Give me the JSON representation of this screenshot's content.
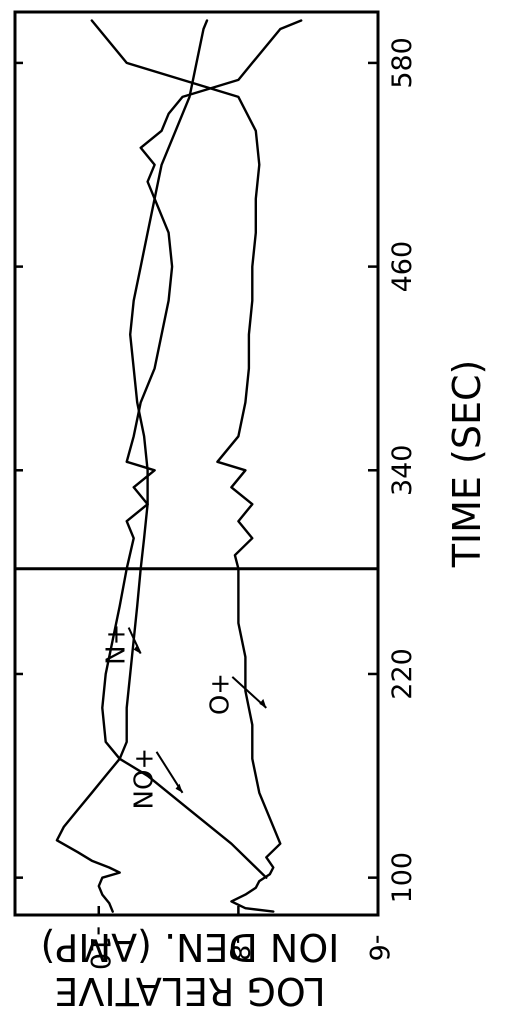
{
  "chart_data": {
    "type": "line",
    "xlabel": "TIME (SEC)",
    "ylabel": "LOG RELATIVE ION DEN. (AMP)",
    "x_ticks": [
      100,
      220,
      340,
      460,
      580
    ],
    "y_ticks": [
      -10,
      -8,
      -6
    ],
    "y_tick_labels": [
      "-10",
      "-8",
      "-6"
    ],
    "xlim": [
      78,
      610
    ],
    "ylim": [
      -6,
      -11.2
    ],
    "vertical_marker_x": 282,
    "annotations": [
      {
        "text": "N+",
        "target_x": 232,
        "target_y": -9.4
      },
      {
        "text": "NO+",
        "target_x": 150,
        "target_y": -8.8
      },
      {
        "text": "O+",
        "target_x": 200,
        "target_y": -7.6
      }
    ],
    "series": [
      {
        "name": "N+",
        "x": [
          80,
          85,
          90,
          95,
          100,
          103,
          106,
          110,
          115,
          122,
          130,
          140,
          150,
          160,
          170,
          180,
          200,
          220,
          240,
          260,
          282,
          300,
          320,
          340,
          360,
          380,
          400,
          420,
          440,
          460,
          480,
          500,
          520,
          540,
          560,
          580,
          600,
          605
        ],
        "y": [
          -9.8,
          -9.85,
          -9.95,
          -10.0,
          -9.95,
          -9.7,
          -9.85,
          -10.1,
          -10.3,
          -10.6,
          -10.5,
          -10.3,
          -10.1,
          -9.9,
          -9.7,
          -9.6,
          -9.6,
          -9.55,
          -9.5,
          -9.45,
          -9.4,
          -9.35,
          -9.3,
          -9.3,
          -9.35,
          -9.45,
          -9.5,
          -9.55,
          -9.5,
          -9.4,
          -9.3,
          -9.2,
          -9.1,
          -8.9,
          -8.7,
          -8.6,
          -8.5,
          -8.45
        ]
      },
      {
        "name": "NO+",
        "x": [
          100,
          120,
          140,
          160,
          170,
          180,
          200,
          220,
          240,
          260,
          282,
          300,
          310,
          320,
          330,
          340,
          345,
          360,
          380,
          400,
          420,
          440,
          460,
          480,
          500,
          510,
          520,
          530,
          540,
          550,
          560,
          570,
          580,
          600,
          605
        ],
        "y": [
          -7.6,
          -8.1,
          -8.7,
          -9.3,
          -9.7,
          -9.9,
          -9.95,
          -9.9,
          -9.8,
          -9.7,
          -9.6,
          -9.5,
          -9.6,
          -9.3,
          -9.5,
          -9.2,
          -9.6,
          -9.5,
          -9.4,
          -9.2,
          -9.1,
          -9.0,
          -8.95,
          -9.0,
          -9.2,
          -9.3,
          -9.2,
          -9.4,
          -9.1,
          -9.0,
          -8.8,
          -8.0,
          -7.8,
          -7.4,
          -7.1
        ]
      },
      {
        "name": "O+",
        "x": [
          80,
          82,
          86,
          90,
          94,
          98,
          102,
          106,
          112,
          120,
          130,
          150,
          170,
          190,
          210,
          230,
          250,
          270,
          282,
          290,
          300,
          310,
          320,
          330,
          340,
          345,
          360,
          380,
          400,
          420,
          440,
          460,
          480,
          500,
          520,
          540,
          560,
          580,
          590,
          600,
          605
        ],
        "y": [
          -7.5,
          -7.9,
          -8.1,
          -7.9,
          -7.75,
          -7.7,
          -7.55,
          -7.5,
          -7.6,
          -7.4,
          -7.5,
          -7.7,
          -7.8,
          -7.8,
          -7.9,
          -7.9,
          -8.0,
          -8.0,
          -8.0,
          -8.05,
          -7.8,
          -8.0,
          -7.8,
          -8.1,
          -7.9,
          -8.3,
          -8.0,
          -7.9,
          -7.85,
          -7.85,
          -7.8,
          -7.8,
          -7.75,
          -7.75,
          -7.7,
          -7.75,
          -8.0,
          -9.6,
          -9.8,
          -10.0,
          -10.1
        ]
      }
    ]
  }
}
